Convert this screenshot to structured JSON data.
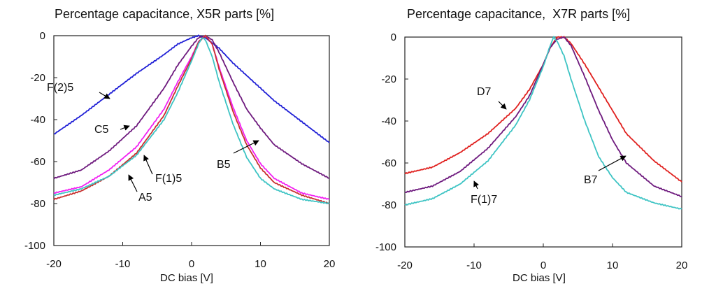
{
  "chart_data": [
    {
      "type": "line",
      "title": "Percentage capacitance, X5R parts [%]",
      "xlabel": "DC bias [V]",
      "ylabel": "",
      "xlim": [
        -20,
        20
      ],
      "ylim": [
        -100,
        0
      ],
      "xticks": [
        -20,
        -10,
        0,
        10,
        20
      ],
      "yticks": [
        0,
        -20,
        -40,
        -60,
        -80,
        -100
      ],
      "grid": false,
      "series": [
        {
          "name": "F(2)5",
          "color": "#1f1fd6",
          "x": [
            -20,
            -16,
            -12,
            -8,
            -4,
            -2,
            0,
            1,
            2,
            4,
            6,
            8,
            10,
            12,
            16,
            20
          ],
          "y": [
            -47,
            -38,
            -28,
            -18,
            -9,
            -4,
            -1,
            0,
            -1,
            -6,
            -13,
            -19,
            -25,
            -31,
            -41,
            -51
          ]
        },
        {
          "name": "C5",
          "color": "#6e1a7e",
          "x": [
            -20,
            -16,
            -12,
            -8,
            -4,
            -2,
            0,
            1,
            2,
            3,
            4,
            6,
            8,
            10,
            12,
            16,
            20
          ],
          "y": [
            -68,
            -64,
            -55,
            -43,
            -25,
            -14,
            -5,
            -1,
            0,
            -2,
            -8,
            -22,
            -35,
            -44,
            -52,
            -61,
            -68
          ]
        },
        {
          "name": "F(1)5",
          "color": "#f21ff2",
          "x": [
            -20,
            -16,
            -12,
            -8,
            -4,
            -2,
            0,
            1,
            2,
            3,
            4,
            6,
            8,
            10,
            12,
            16,
            20
          ],
          "y": [
            -75,
            -72,
            -64,
            -53,
            -35,
            -22,
            -10,
            -3,
            0,
            -4,
            -15,
            -34,
            -50,
            -61,
            -68,
            -75,
            -78
          ]
        },
        {
          "name": "A5",
          "color": "#c8302e",
          "x": [
            -20,
            -16,
            -12,
            -8,
            -4,
            -2,
            0,
            1,
            2,
            3,
            4,
            6,
            8,
            10,
            12,
            16,
            20
          ],
          "y": [
            -78,
            -74,
            -67,
            -56,
            -38,
            -24,
            -11,
            -3,
            0,
            -4,
            -16,
            -36,
            -52,
            -63,
            -70,
            -76,
            -80
          ]
        },
        {
          "name": "B5",
          "color": "#3ec4c4",
          "x": [
            -20,
            -16,
            -12,
            -8,
            -4,
            -2,
            0,
            1,
            1.5,
            2,
            3,
            4,
            6,
            8,
            10,
            12,
            16,
            20
          ],
          "y": [
            -76,
            -73,
            -67,
            -57,
            -40,
            -27,
            -12,
            -4,
            -1,
            -2,
            -10,
            -22,
            -42,
            -58,
            -68,
            -73,
            -78,
            -80
          ]
        }
      ],
      "annotations": [
        "F(2)5",
        "C5",
        "F(1)5",
        "A5",
        "B5"
      ]
    },
    {
      "type": "line",
      "title": "Percentage capacitance,  X7R parts [%]",
      "xlabel": "DC bias [V]",
      "ylabel": "",
      "xlim": [
        -20,
        20
      ],
      "ylim": [
        -100,
        0
      ],
      "xticks": [
        -20,
        -10,
        0,
        10,
        20
      ],
      "yticks": [
        0,
        -20,
        -40,
        -60,
        -80,
        -100
      ],
      "grid": false,
      "series": [
        {
          "name": "D7",
          "color": "#e0201e",
          "x": [
            -20,
            -16,
            -12,
            -8,
            -4,
            -2,
            0,
            1,
            2,
            3,
            4,
            6,
            8,
            10,
            12,
            16,
            20
          ],
          "y": [
            -65,
            -62,
            -55,
            -46,
            -34,
            -25,
            -13,
            -5,
            0,
            0,
            -3,
            -13,
            -24,
            -35,
            -46,
            -59,
            -69
          ]
        },
        {
          "name": "B7",
          "color": "#6e1a7e",
          "x": [
            -20,
            -16,
            -12,
            -8,
            -4,
            -2,
            0,
            1,
            2,
            3,
            4,
            6,
            8,
            10,
            12,
            16,
            20
          ],
          "y": [
            -74,
            -71,
            -64,
            -53,
            -38,
            -28,
            -13,
            -5,
            -1,
            0,
            -4,
            -19,
            -35,
            -49,
            -60,
            -71,
            -76
          ]
        },
        {
          "name": "F(1)7",
          "color": "#3ec4c4",
          "x": [
            -20,
            -16,
            -12,
            -8,
            -4,
            -2,
            0,
            1,
            1.5,
            2,
            3,
            4,
            6,
            8,
            10,
            12,
            16,
            20
          ],
          "y": [
            -80,
            -77,
            -70,
            -59,
            -42,
            -30,
            -14,
            -4,
            0,
            -2,
            -9,
            -20,
            -40,
            -57,
            -67,
            -74,
            -79,
            -82
          ]
        }
      ],
      "annotations": [
        "D7",
        "B7",
        "F(1)7"
      ]
    }
  ]
}
